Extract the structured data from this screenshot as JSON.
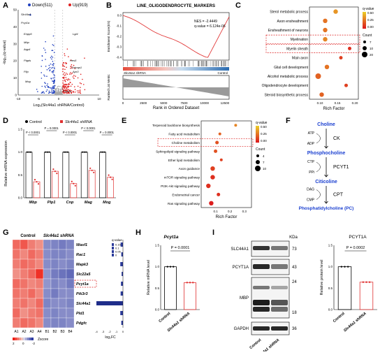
{
  "panel_letters": [
    "A",
    "B",
    "C",
    "D",
    "E",
    "F",
    "G",
    "H",
    "I"
  ],
  "chart_data": [
    {
      "panel": "A",
      "type": "scatter",
      "legend": [
        {
          "label": "Down(511)",
          "color": "#1f3fbf"
        },
        {
          "label": "Up(919)",
          "color": "#e02020"
        }
      ],
      "xlabel": "Log₂(Slc44a1 shRNA/Control)",
      "ylabel": "-log₁₀(q-value)",
      "xticks": [
        "-10",
        "-5",
        "0",
        "5",
        "10"
      ],
      "yticks": [
        "0",
        "10",
        "20",
        "30",
        "40",
        "50"
      ],
      "labeled_genes": [
        "Slc44a1",
        "Pcyt1a",
        "Enpp6",
        "Mbp",
        "Aqp4",
        "Ptgds",
        "Pllp",
        "Mog",
        "Lgi4",
        "Hes5",
        "Cntnap1",
        "Apr3",
        "Pcyt1b"
      ]
    },
    {
      "panel": "B",
      "type": "line",
      "title": "LINE_OLIGODENDROCYTE_MARKERS",
      "nes_text": "NES = -2.4449",
      "q_text": "q-value = 6.124e-06",
      "ylabel_top": "Enrichment Score(ES)",
      "ylabel_bottom": "Ranked List Metric",
      "yticks_top": [
        "0.0",
        "-0.1",
        "-0.2",
        "-0.3",
        "-0.4"
      ],
      "xticks": [
        "0",
        "2500",
        "5000",
        "7500",
        "10000",
        "12500"
      ],
      "xlabel": "Rank in Ordered Dataset",
      "left_group": "Slc44a1 shRNA",
      "right_group": "Control"
    },
    {
      "panel": "C",
      "type": "scatter",
      "xlabel": "Rich Factor",
      "xticks": [
        "0.10",
        "0.15",
        "0.20"
      ],
      "terms": [
        {
          "label": "Sterol metabolic process",
          "x": 0.145,
          "q": 0.35,
          "count": 10
        },
        {
          "label": "Axon ensheathment",
          "x": 0.115,
          "q": 0.25,
          "count": 10
        },
        {
          "label": "Ensheathment of neurons",
          "x": 0.115,
          "q": 0.25,
          "count": 10
        },
        {
          "label": "Myelination",
          "x": 0.115,
          "q": 0.3,
          "count": 10
        },
        {
          "label": "Myelin sheath",
          "x": 0.185,
          "q": 0.05,
          "count": 7
        },
        {
          "label": "Main axon",
          "x": 0.16,
          "q": 0.1,
          "count": 7
        },
        {
          "label": "Glial cell development",
          "x": 0.12,
          "q": 0.25,
          "count": 10
        },
        {
          "label": "Alcohol metabolic process",
          "x": 0.095,
          "q": 0.2,
          "count": 20
        },
        {
          "label": "Oligodendrocyte development",
          "x": 0.175,
          "q": 0.1,
          "count": 7
        },
        {
          "label": "Steroid biosynthetic process",
          "x": 0.105,
          "q": 0.2,
          "count": 10
        }
      ],
      "highlighted": [
        "Myelination",
        "Myelin sheath"
      ],
      "colorbar_title": "q-value",
      "colorbar_ticks": [
        "0.50",
        "0.25",
        "0.00"
      ],
      "size_title": "Count",
      "size_ticks": [
        "7",
        "10",
        "20"
      ]
    },
    {
      "panel": "D",
      "type": "bar",
      "legend": [
        "Control",
        "Slc44a1 shRNA"
      ],
      "ylabel": "Relative mRNA expression",
      "categories": [
        "Mbp",
        "Plp1",
        "Cnp",
        "Mag",
        "Mog"
      ],
      "series": [
        {
          "name": "Control",
          "values": [
            1.0,
            1.0,
            1.0,
            1.0,
            1.0
          ]
        },
        {
          "name": "Slc44a1 shRNA",
          "values": [
            0.35,
            0.58,
            0.31,
            0.6,
            0.45
          ]
        }
      ],
      "ylim": [
        0,
        1.5
      ],
      "yticks": [
        "0.0",
        "0.5",
        "1.0",
        "1.5"
      ],
      "pvalues": [
        "P < 0.0001",
        "P = 0.0001",
        "P < 0.0001",
        "P < 0.0001",
        "P = 0.0001"
      ]
    },
    {
      "panel": "E",
      "type": "scatter",
      "xlabel": "Rich Factor",
      "xticks": [
        "0.1",
        "0.2",
        "0.3"
      ],
      "terms": [
        {
          "label": "Terpenoid backbone biosynthesis",
          "x": 0.24,
          "q": 0.3,
          "count": 4
        },
        {
          "label": "Fatty acid metabolism",
          "x": 0.13,
          "q": 0.2,
          "count": 4
        },
        {
          "label": "Choline metabolism",
          "x": 0.11,
          "q": 0.15,
          "count": 7
        },
        {
          "label": "Sphingolipid signaling pathway",
          "x": 0.1,
          "q": 0.15,
          "count": 7
        },
        {
          "label": "Ether lipid metabolism",
          "x": 0.14,
          "q": 0.1,
          "count": 4
        },
        {
          "label": "Axon guidance",
          "x": 0.08,
          "q": 0.1,
          "count": 10
        },
        {
          "label": "mTOR signaling pathway",
          "x": 0.08,
          "q": 0.05,
          "count": 10
        },
        {
          "label": "PI3K-Akt signaling pathway",
          "x": 0.05,
          "q": 0.05,
          "count": 10
        },
        {
          "label": "Endometrial cancer",
          "x": 0.12,
          "q": 0.05,
          "count": 7
        },
        {
          "label": "Ras signaling pathway",
          "x": 0.07,
          "q": 0.0,
          "count": 10
        }
      ],
      "highlighted": [
        "Choline metabolism"
      ],
      "colorbar_title": "q-value",
      "colorbar_ticks": [
        "0.50",
        "0.25",
        "0.00"
      ],
      "size_title": "Count",
      "size_ticks": [
        "4",
        "7",
        "10"
      ]
    },
    {
      "panel": "G",
      "type": "heatmap",
      "rows": [
        "Wasf1",
        "Rac1",
        "Mapk3",
        "Slc22a5",
        "Pcyt1a",
        "Pik3r3",
        "Slc44a1",
        "Pld1",
        "Pdgfc"
      ],
      "cols": [
        "A1",
        "A2",
        "A3",
        "A4",
        "B1",
        "B2",
        "B3",
        "B4"
      ],
      "group_labels": [
        "Control",
        "Slc44a1 shRNA"
      ],
      "highlighted_row": "Pcyt1a",
      "zscores": [
        [
          1.2,
          1.4,
          1.0,
          0.8,
          -1.0,
          -1.1,
          -1.2,
          -1.1
        ],
        [
          1.1,
          0.9,
          1.2,
          1.0,
          -1.0,
          -1.1,
          -1.1,
          -1.0
        ],
        [
          1.0,
          1.2,
          1.1,
          0.9,
          -1.0,
          -1.1,
          -1.0,
          -1.1
        ],
        [
          0.8,
          1.0,
          1.2,
          1.8,
          -0.9,
          -1.2,
          -1.3,
          -1.4
        ],
        [
          1.2,
          1.1,
          0.9,
          1.0,
          -0.9,
          -1.1,
          -1.0,
          -1.2
        ],
        [
          1.1,
          1.0,
          1.2,
          0.9,
          -1.0,
          -1.2,
          -1.0,
          -1.0
        ],
        [
          1.0,
          1.1,
          0.9,
          1.2,
          -1.1,
          -1.0,
          -1.0,
          -1.1
        ],
        [
          1.2,
          0.8,
          1.0,
          1.1,
          -1.0,
          -1.1,
          -1.0,
          -1.0
        ],
        [
          1.0,
          1.2,
          1.1,
          0.9,
          -1.0,
          -1.1,
          -1.1,
          -1.0
        ]
      ],
      "log2fc": [
        -0.35,
        -0.25,
        -0.4,
        -0.2,
        -0.3,
        -0.35,
        -4.0,
        -0.4,
        -0.25
      ],
      "fc_xlabel": "log₂FC",
      "fc_xticks": [
        "-4",
        "-3",
        "-2",
        "-1",
        "0"
      ],
      "zscore_label": "Zscore",
      "zscore_ticks": [
        "2",
        "0",
        "-2"
      ],
      "q_title": "q-value",
      "q_ticks": [
        "0.15",
        "0.1",
        "0.05",
        "0"
      ]
    },
    {
      "panel": "H",
      "type": "bar",
      "title": "Pcyt1a",
      "ylabel": "Relative mRNA level",
      "categories": [
        "Control",
        "Slc44a1 shRNA"
      ],
      "values": [
        1.0,
        0.63
      ],
      "ylim": [
        0,
        1.5
      ],
      "yticks": [
        "0.0",
        "0.5",
        "1.0",
        "1.5"
      ],
      "pvalue": "P = 0.0001"
    },
    {
      "panel": "I-quant",
      "type": "bar",
      "title": "PCYT1A",
      "ylabel": "Relative protein level",
      "categories": [
        "Control",
        "Slc44a1 shRNA"
      ],
      "values": [
        1.0,
        0.64
      ],
      "ylim": [
        0,
        1.5
      ],
      "yticks": [
        "0.0",
        "0.5",
        "1.0",
        "1.5"
      ],
      "pvalue": "P = 0.0002"
    }
  ],
  "pathway_F": {
    "nodes": [
      "Choline",
      "Phosphocholine",
      "Citicoline",
      "Phosphatidylcholine (PC)"
    ],
    "enzymes": [
      "CK",
      "PCYT1",
      "CPT"
    ],
    "cofactors": [
      [
        "ATP",
        "ADP"
      ],
      [
        "CTP",
        "PPi"
      ],
      [
        "DAG",
        "CMP"
      ]
    ]
  },
  "blot_I": {
    "kda_label": "KDa",
    "bands": [
      {
        "name": "SLC44A1",
        "kda": "73"
      },
      {
        "name": "PCYT1A",
        "kda": "43"
      },
      {
        "name": "MBP",
        "kda": "24",
        "kda2": "18"
      },
      {
        "name": "GAPDH",
        "kda": "36"
      }
    ],
    "lanes": [
      "Control",
      "Slc44a1 shRNA"
    ]
  }
}
